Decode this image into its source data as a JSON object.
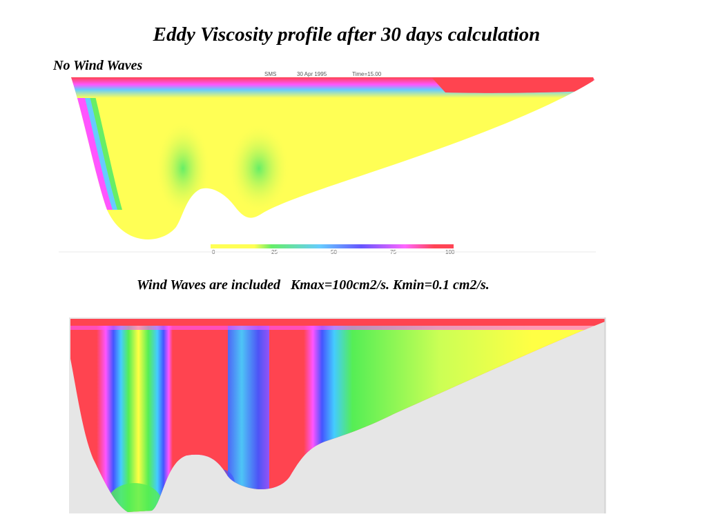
{
  "title": "Eddy Viscosity profile after 30 days calculation",
  "panel1": {
    "label": "No Wind Waves",
    "header": {
      "app": "SMS",
      "date": "30 Apr 1995",
      "time": "Time=15.00"
    },
    "colorbar": {
      "colors": [
        "#ffff55",
        "#66ee66",
        "#66ccff",
        "#6655ff",
        "#ff66ff",
        "#ff4455"
      ],
      "ticks": [
        "0",
        "25",
        "50",
        "75",
        "100"
      ]
    }
  },
  "panel2": {
    "label": "Wind Waves are included   Kmax=100cm2/s. Kmin=0.1 cm2/s."
  },
  "colors": {
    "low": "#ffff44",
    "mid_low": "#55ee55",
    "mid": "#44ccff",
    "mid_high": "#4455ff",
    "high_low": "#ff55ff",
    "high": "#ff4450",
    "background2": "#e6e6e6"
  }
}
